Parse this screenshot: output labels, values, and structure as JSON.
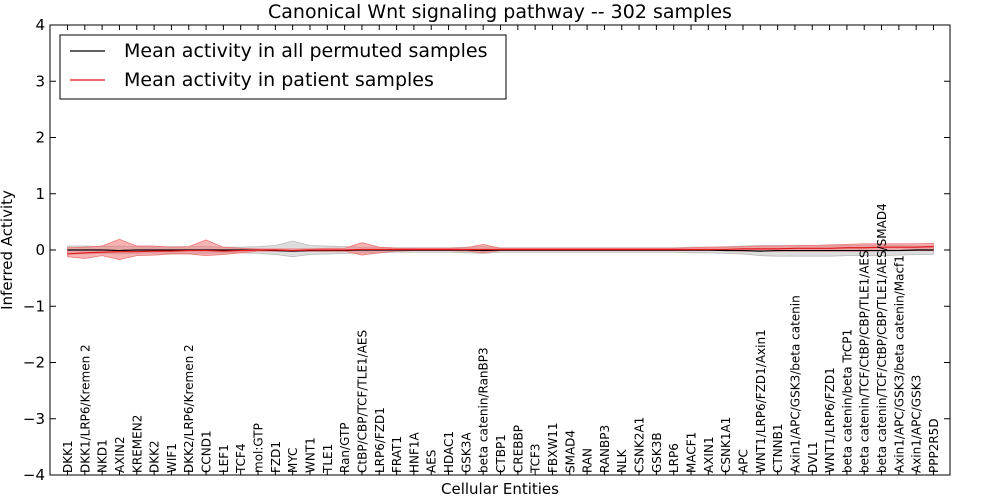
{
  "chart_data": {
    "type": "line",
    "title": "Canonical Wnt signaling pathway -- 302 samples",
    "xlabel": "Cellular Entities",
    "ylabel": "Inferred Activity",
    "ylim": [
      -4,
      4
    ],
    "yticks": [
      "−4",
      "−3",
      "−2",
      "−1",
      "0",
      "1",
      "2",
      "3",
      "4"
    ],
    "categories": [
      "DKK1",
      "DKK1/LRP6/Kremen 2",
      "NKD1",
      "AXIN2",
      "KREMEN2",
      "DKK2",
      "WIF1",
      "DKK2/LRP6/Kremen 2",
      "CCND1",
      "LEF1",
      "TCF4",
      "mol:GTP",
      "FZD1",
      "MYC",
      "WNT1",
      "TLE1",
      "Ran/GTP",
      "CtBP/CBP/TCF/TLE1/AES",
      "LRP6/FZD1",
      "FRAT1",
      "HNF1A",
      "AES",
      "HDAC1",
      "GSK3A",
      "beta catenin/RanBP3",
      "CTBP1",
      "CREBBP",
      "TCF3",
      "FBXW11",
      "SMAD4",
      "RAN",
      "RANBP3",
      "NLK",
      "CSNK2A1",
      "GSK3B",
      "LRP6",
      "MACF1",
      "AXIN1",
      "CSNK1A1",
      "APC",
      "WNT1/LRP6/FZD1/Axin1",
      "CTNNB1",
      "Axin1/APC/GSK3/beta catenin",
      "DVL1",
      "WNT1/LRP6/FZD1",
      "beta catenin/beta TrCP1",
      "beta catenin/TCF/CtBP/CBP/TLE1/AES",
      "beta catenin/TCF/CtBP/CBP/TLE1/AES/SMAD4",
      "Axin1/APC/GSK3/beta catenin/Macf1",
      "Axin1/APC/GSK3",
      "PPP2R5D"
    ],
    "series": [
      {
        "name": "Mean activity in all permuted samples",
        "color": "#000000",
        "band_color": "#bbbbbb",
        "values": [
          0.0,
          0.0,
          0.0,
          -0.01,
          0.0,
          0.0,
          0.0,
          0.0,
          0.0,
          0.0,
          0.0,
          0.0,
          -0.01,
          -0.02,
          -0.01,
          -0.01,
          -0.01,
          0.0,
          0.0,
          0.0,
          0.0,
          0.0,
          0.0,
          0.0,
          -0.01,
          0.0,
          0.0,
          0.0,
          0.0,
          0.0,
          0.0,
          0.0,
          0.0,
          0.0,
          0.0,
          0.0,
          0.0,
          0.0,
          -0.01,
          -0.01,
          -0.02,
          -0.01,
          -0.01,
          -0.01,
          -0.01,
          -0.01,
          -0.01,
          -0.01,
          -0.01,
          0.0,
          0.0
        ],
        "band_lower": [
          -0.07,
          -0.07,
          -0.06,
          -0.07,
          -0.06,
          -0.05,
          -0.06,
          -0.06,
          -0.06,
          -0.05,
          -0.05,
          -0.06,
          -0.08,
          -0.12,
          -0.08,
          -0.07,
          -0.06,
          -0.05,
          -0.05,
          -0.04,
          -0.04,
          -0.04,
          -0.04,
          -0.05,
          -0.06,
          -0.04,
          -0.04,
          -0.04,
          -0.04,
          -0.04,
          -0.04,
          -0.04,
          -0.04,
          -0.04,
          -0.04,
          -0.04,
          -0.05,
          -0.05,
          -0.06,
          -0.07,
          -0.1,
          -0.11,
          -0.11,
          -0.11,
          -0.11,
          -0.1,
          -0.1,
          -0.1,
          -0.09,
          -0.08,
          -0.08
        ],
        "band_upper": [
          0.07,
          0.07,
          0.06,
          0.07,
          0.06,
          0.05,
          0.06,
          0.06,
          0.06,
          0.05,
          0.05,
          0.06,
          0.08,
          0.16,
          0.08,
          0.07,
          0.06,
          0.05,
          0.05,
          0.04,
          0.04,
          0.04,
          0.04,
          0.05,
          0.06,
          0.04,
          0.04,
          0.04,
          0.04,
          0.04,
          0.04,
          0.04,
          0.04,
          0.04,
          0.04,
          0.04,
          0.05,
          0.05,
          0.06,
          0.07,
          0.08,
          0.08,
          0.08,
          0.08,
          0.08,
          0.08,
          0.08,
          0.08,
          0.08,
          0.07,
          0.07
        ]
      },
      {
        "name": "Mean activity in patient samples",
        "color": "#e8141b",
        "band_color": "#ee7777",
        "values": [
          -0.07,
          -0.05,
          -0.04,
          -0.03,
          -0.03,
          -0.02,
          -0.02,
          -0.01,
          -0.01,
          -0.02,
          -0.01,
          0.0,
          0.0,
          -0.01,
          0.0,
          0.0,
          0.0,
          0.01,
          0.01,
          0.01,
          0.01,
          0.01,
          0.01,
          0.01,
          0.01,
          0.01,
          0.01,
          0.01,
          0.01,
          0.01,
          0.01,
          0.01,
          0.01,
          0.01,
          0.01,
          0.01,
          0.01,
          0.01,
          0.01,
          0.02,
          0.02,
          0.02,
          0.03,
          0.03,
          0.03,
          0.04,
          0.04,
          0.05,
          0.05,
          0.05,
          0.06
        ],
        "band_lower": [
          -0.12,
          -0.15,
          -0.1,
          -0.17,
          -0.1,
          -0.09,
          -0.07,
          -0.07,
          -0.1,
          -0.08,
          -0.05,
          -0.02,
          -0.02,
          -0.02,
          -0.02,
          -0.02,
          -0.02,
          -0.09,
          -0.05,
          -0.02,
          -0.01,
          -0.01,
          -0.01,
          -0.02,
          -0.05,
          -0.01,
          -0.01,
          -0.01,
          -0.01,
          -0.01,
          -0.01,
          -0.01,
          -0.01,
          -0.01,
          -0.01,
          -0.01,
          -0.01,
          -0.01,
          -0.01,
          -0.02,
          -0.02,
          -0.02,
          -0.02,
          -0.02,
          -0.02,
          -0.02,
          -0.02,
          -0.01,
          -0.01,
          -0.01,
          -0.01
        ],
        "band_upper": [
          0.04,
          0.05,
          0.07,
          0.19,
          0.07,
          0.07,
          0.05,
          0.06,
          0.18,
          0.05,
          0.03,
          0.02,
          0.02,
          0.02,
          0.02,
          0.03,
          0.03,
          0.13,
          0.05,
          0.03,
          0.03,
          0.03,
          0.03,
          0.04,
          0.1,
          0.03,
          0.03,
          0.03,
          0.03,
          0.03,
          0.03,
          0.03,
          0.03,
          0.03,
          0.03,
          0.03,
          0.04,
          0.05,
          0.05,
          0.06,
          0.07,
          0.07,
          0.08,
          0.08,
          0.09,
          0.1,
          0.11,
          0.11,
          0.11,
          0.11,
          0.12
        ]
      }
    ],
    "legend_position": "top-left",
    "grid": false
  }
}
